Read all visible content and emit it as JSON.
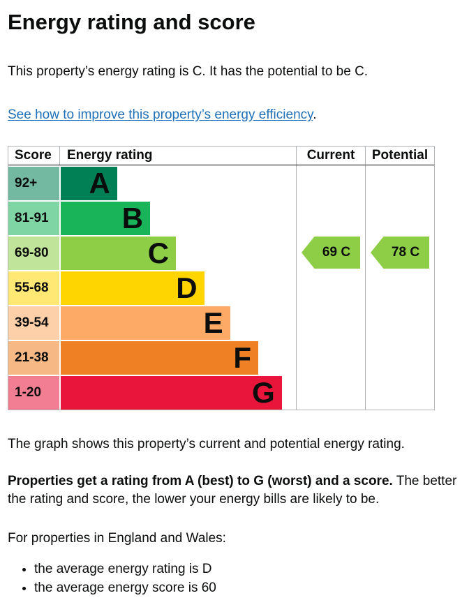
{
  "page": {
    "title": "Energy rating and score",
    "intro": "This property’s energy rating is C. It has the potential to be C.",
    "improve_link": "See how to improve this property’s energy efficiency",
    "improve_link_suffix": ".",
    "caption": "The graph shows this property’s current and potential energy rating.",
    "explanation_bold": "Properties get a rating from A (best) to G (worst) and a score.",
    "explanation_rest": " The better the rating and score, the lower your energy bills are likely to be.",
    "region_intro": "For properties in England and Wales:",
    "bullets": [
      "the average energy rating is D",
      "the average energy score is 60"
    ],
    "link_color": "#1d70b8",
    "text_color": "#0b0c0c"
  },
  "table": {
    "headers": {
      "score": "Score",
      "rating": "Energy rating",
      "current": "Current",
      "potential": "Potential"
    }
  },
  "chart_data": {
    "type": "bar",
    "title": "Energy rating",
    "categories": [
      "A",
      "B",
      "C",
      "D",
      "E",
      "F",
      "G"
    ],
    "score_ranges": [
      "92+",
      "81-91",
      "69-80",
      "55-68",
      "39-54",
      "21-38",
      "1-20"
    ],
    "bands": [
      {
        "letter": "A",
        "score": "92+",
        "color": "#008054",
        "tint": "#73b9a1",
        "width_pct": 24
      },
      {
        "letter": "B",
        "score": "81-91",
        "color": "#19b459",
        "tint": "#80d5a4",
        "width_pct": 38
      },
      {
        "letter": "C",
        "score": "69-80",
        "color": "#8dce46",
        "tint": "#c0e49a",
        "width_pct": 49
      },
      {
        "letter": "D",
        "score": "55-68",
        "color": "#ffd500",
        "tint": "#ffe873",
        "width_pct": 61
      },
      {
        "letter": "E",
        "score": "39-54",
        "color": "#fcaa65",
        "tint": "#fdd0aa",
        "width_pct": 72
      },
      {
        "letter": "F",
        "score": "21-38",
        "color": "#ef8023",
        "tint": "#f6b986",
        "width_pct": 84
      },
      {
        "letter": "G",
        "score": "1-20",
        "color": "#e9153b",
        "tint": "#f27e93",
        "width_pct": 94
      }
    ],
    "current": {
      "label": "69 C",
      "value": 69,
      "band": "C",
      "band_index": 2,
      "color": "#8dce46"
    },
    "potential": {
      "label": "78 C",
      "value": 78,
      "band": "C",
      "band_index": 2,
      "color": "#8dce46"
    }
  }
}
